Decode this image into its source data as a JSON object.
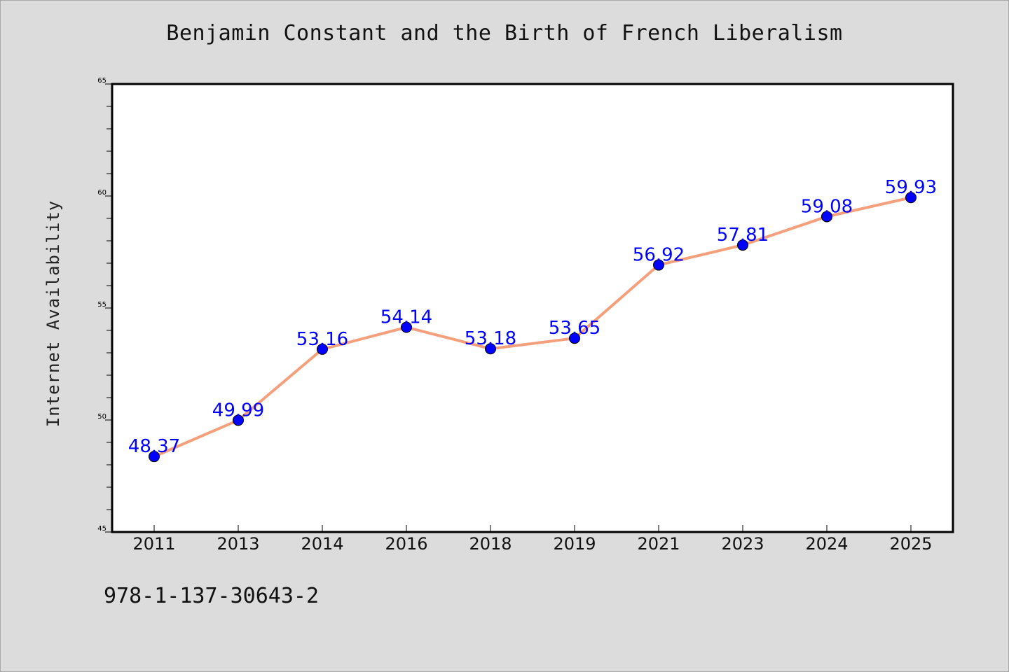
{
  "chart_data": {
    "type": "line",
    "title": "Benjamin Constant and the Birth of French Liberalism",
    "xlabel": "",
    "ylabel": "Internet Availability",
    "categories": [
      "2011",
      "2013",
      "2014",
      "2016",
      "2018",
      "2019",
      "2021",
      "2023",
      "2024",
      "2025"
    ],
    "series": [
      {
        "values": [
          48.37,
          49.99,
          53.16,
          54.14,
          53.18,
          53.65,
          56.92,
          57.81,
          59.08,
          59.93
        ],
        "labels": [
          "48.37",
          "49.99",
          "53.16",
          "54.14",
          "53.18",
          "53.65",
          "56.92",
          "57.81",
          "59.08",
          "59.93"
        ],
        "line_color": "#f4a07c",
        "marker_color": "#0000ff"
      }
    ],
    "ylim": [
      45,
      65
    ],
    "yticks": [
      45,
      50,
      55,
      60,
      65
    ],
    "ytick_labels": [
      "45",
      "50",
      "55",
      "60",
      "65"
    ],
    "grid": false,
    "legend": "none"
  },
  "footer": {
    "isbn": "978-1-137-30643-2"
  },
  "colors": {
    "background": "#dcdcdc",
    "plot_background": "#ffffff",
    "line": "#f4a07c",
    "marker": "#0000ff",
    "data_label": "#0000ff"
  }
}
